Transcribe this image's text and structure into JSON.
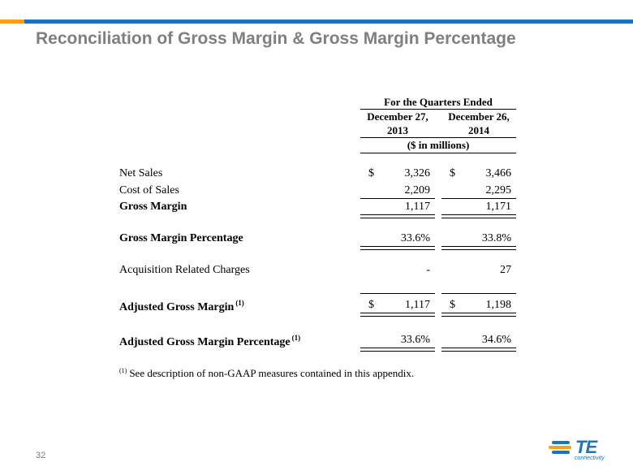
{
  "header": {
    "title": "Reconciliation of Gross Margin & Gross Margin Percentage"
  },
  "table": {
    "period_header": "For the Quarters Ended",
    "columns": [
      {
        "line1": "December 27,",
        "line2": "2013"
      },
      {
        "line1": "December 26,",
        "line2": "2014"
      }
    ],
    "units": "($ in millions)",
    "rows": [
      {
        "label": "Net Sales",
        "dollar1": "$",
        "v1": "3,326",
        "dollar2": "$",
        "v2": "3,466"
      },
      {
        "label": "Cost of Sales",
        "v1": "2,209",
        "v2": "2,295"
      },
      {
        "label": "Gross Margin",
        "v1": "1,117",
        "v2": "1,171"
      },
      {
        "label": "Gross Margin Percentage",
        "v1": "33.6%",
        "v2": "33.8%"
      },
      {
        "label": "Acquisition Related Charges",
        "v1": "-",
        "v2": "27"
      },
      {
        "label": "Adjusted Gross Margin",
        "note": "(1)",
        "dollar1": "$",
        "v1": "1,117",
        "dollar2": "$",
        "v2": "1,198"
      },
      {
        "label": "Adjusted Gross Margin Percentage",
        "note": "(1)",
        "v1": "33.6%",
        "v2": "34.6%"
      }
    ]
  },
  "footnote": {
    "marker": "(1)",
    "text": "See description of non-GAAP measures contained in this appendix."
  },
  "page_number": "32",
  "logo": {
    "text": "TE",
    "subtext": "connectivity",
    "colors": {
      "blue": "#1c75bc",
      "orange": "#f7a11a"
    }
  }
}
